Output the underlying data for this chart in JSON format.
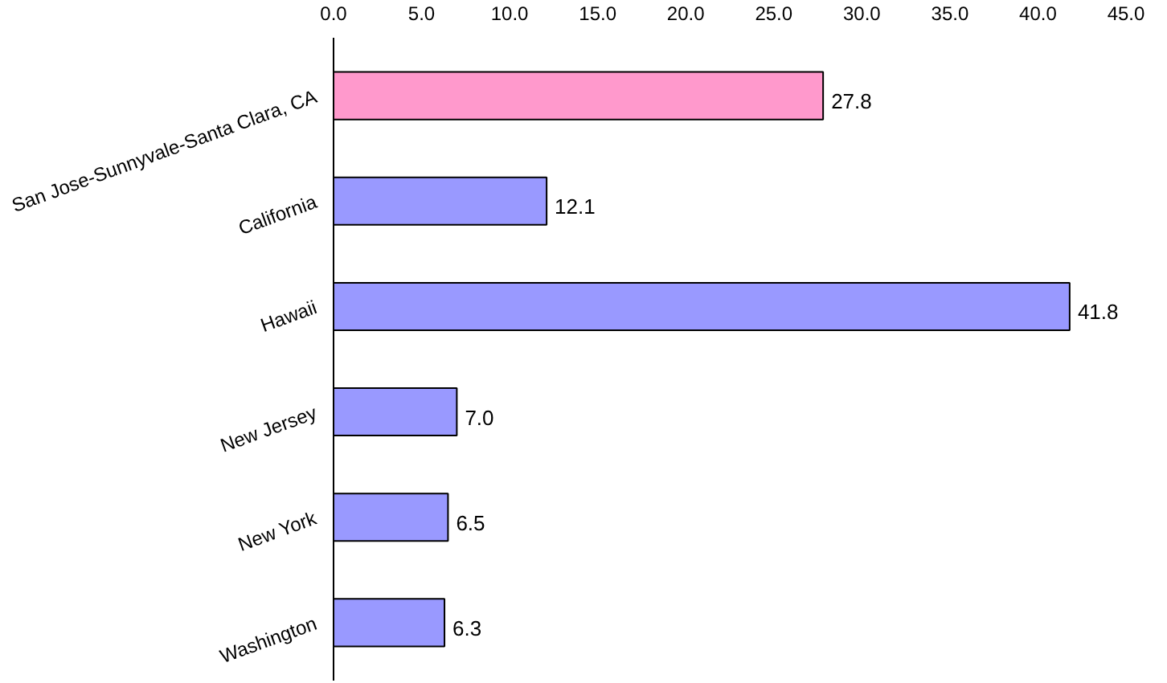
{
  "chart_data": {
    "type": "bar",
    "orientation": "horizontal",
    "categories": [
      "San Jose-Sunnyvale-Santa Clara, CA",
      "California",
      "Hawaii",
      "New Jersey",
      "New York",
      "Washington"
    ],
    "values": [
      27.8,
      12.1,
      41.8,
      7.0,
      6.5,
      6.3
    ],
    "colors": [
      "#ff99cc",
      "#9999ff",
      "#9999ff",
      "#9999ff",
      "#9999ff",
      "#9999ff"
    ],
    "value_labels": [
      "27.8",
      "12.1",
      "41.8",
      "7.0",
      "6.5",
      "6.3"
    ],
    "xlim": [
      0,
      45
    ],
    "xticks": [
      {
        "value": 0,
        "label": "0.0"
      },
      {
        "value": 5,
        "label": "5.0"
      },
      {
        "value": 10,
        "label": "10.0"
      },
      {
        "value": 15,
        "label": "15.0"
      },
      {
        "value": 20,
        "label": "20.0"
      },
      {
        "value": 25,
        "label": "25.0"
      },
      {
        "value": 30,
        "label": "30.0"
      },
      {
        "value": 35,
        "label": "35.0"
      },
      {
        "value": 40,
        "label": "40.0"
      },
      {
        "value": 45,
        "label": "45.0"
      }
    ],
    "grid": false
  }
}
